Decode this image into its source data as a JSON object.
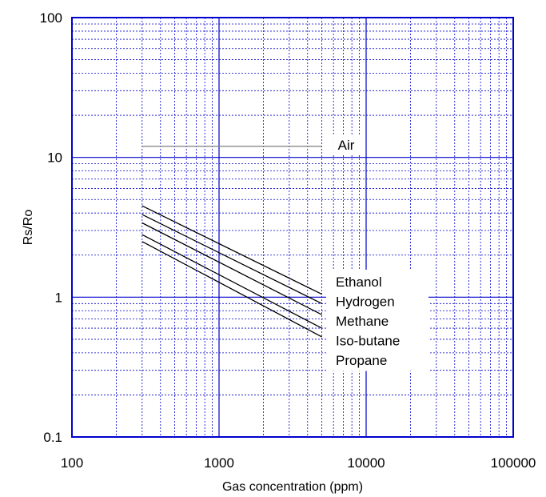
{
  "chart_data": {
    "type": "line",
    "x_scale": "log",
    "y_scale": "log",
    "xlim": [
      100,
      100000
    ],
    "ylim": [
      0.1,
      100
    ],
    "xlabel": "Gas concentration (ppm)",
    "ylabel": "Rs/Ro",
    "x_ticks": [
      "100",
      "1000",
      "10000",
      "100000"
    ],
    "y_ticks": [
      "0.1",
      "1",
      "10",
      "100"
    ],
    "grid": true,
    "colors": {
      "grid": "#0000cc",
      "frame": "#0000cc",
      "series": "#000000",
      "air": "#888888"
    },
    "series": [
      {
        "name": "Air",
        "x": [
          300,
          5000
        ],
        "y": [
          12.0,
          12.0
        ]
      },
      {
        "name": "Ethanol",
        "x": [
          300,
          5000
        ],
        "y": [
          4.5,
          1.05
        ]
      },
      {
        "name": "Hydrogen",
        "x": [
          300,
          5000
        ],
        "y": [
          3.9,
          0.9
        ]
      },
      {
        "name": "Methane",
        "x": [
          300,
          5000
        ],
        "y": [
          3.4,
          0.75
        ]
      },
      {
        "name": "Iso-butane",
        "x": [
          300,
          5000
        ],
        "y": [
          2.8,
          0.6
        ]
      },
      {
        "name": "Propane",
        "x": [
          300,
          5000
        ],
        "y": [
          2.5,
          0.52
        ]
      }
    ]
  }
}
